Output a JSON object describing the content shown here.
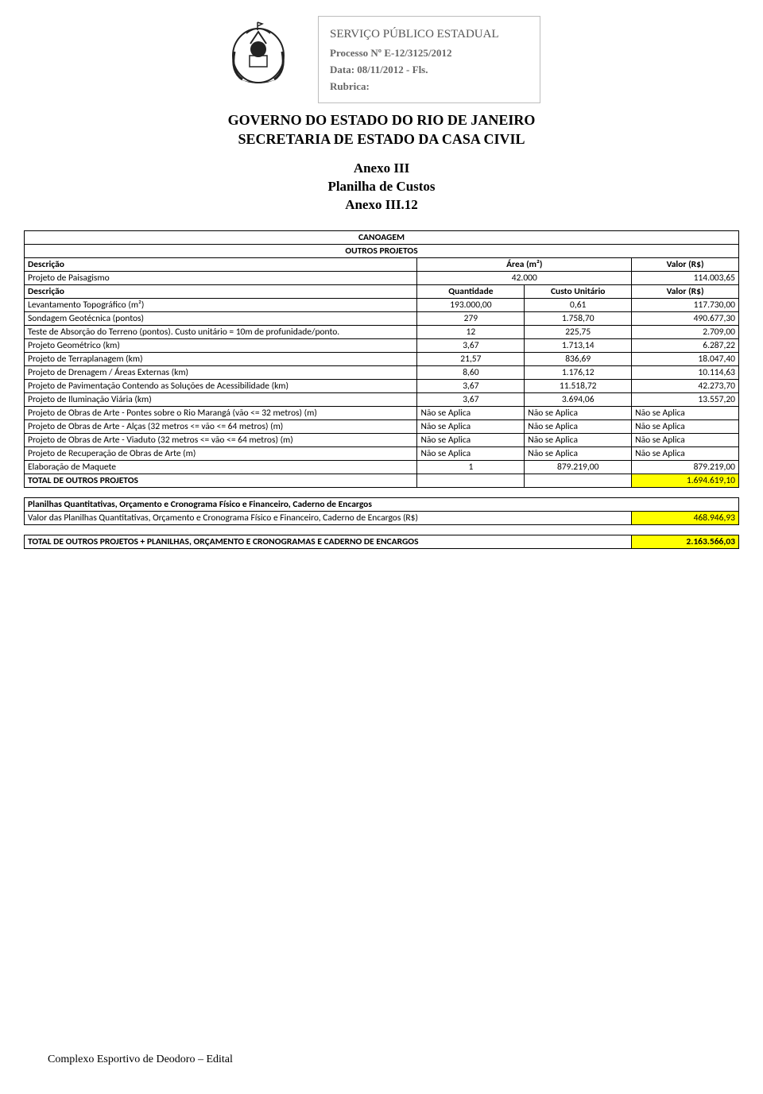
{
  "info_box": {
    "title": "SERVIÇO PÚBLICO ESTADUAL",
    "processo": "Processo Nº E-12/3125/2012",
    "data": "Data: 08/11/2012 - Fls.",
    "rubrica": "Rubrica:"
  },
  "gov_title": {
    "line1": "GOVERNO DO ESTADO DO RIO DE JANEIRO",
    "line2": "SECRETARIA DE ESTADO DA CASA CIVIL"
  },
  "annex_title": {
    "line1": "Anexo III",
    "line2": "Planilha de Custos",
    "line3": "Anexo III.12"
  },
  "table1": {
    "section1": "CANOAGEM",
    "section2": "OUTROS PROJETOS",
    "hdr1": {
      "desc": "Descrição",
      "area": "Área (m²)",
      "valor": "Valor (R$)"
    },
    "row_paisagismo": {
      "desc": "Projeto de Paisagismo",
      "area": "42.000",
      "valor": "114.003,65"
    },
    "hdr2": {
      "desc": "Descrição",
      "qtd": "Quantidade",
      "custo": "Custo Unitário",
      "valor": "Valor (R$)"
    },
    "rows": [
      {
        "desc": "Levantamento Topográfico (m²)",
        "qtd": "193.000,00",
        "custo": "0,61",
        "valor": "117.730,00"
      },
      {
        "desc": "Sondagem Geotécnica (pontos)",
        "qtd": "279",
        "custo": "1.758,70",
        "valor": "490.677,30"
      },
      {
        "desc": "Teste de Absorção do Terreno (pontos). Custo unitário = 10m de profunidade/ponto.",
        "qtd": "12",
        "custo": "225,75",
        "valor": "2.709,00"
      },
      {
        "desc": "Projeto Geométrico (km)",
        "qtd": "3,67",
        "custo": "1.713,14",
        "valor": "6.287,22"
      },
      {
        "desc": "Projeto de Terraplanagem (km)",
        "qtd": "21,57",
        "custo": "836,69",
        "valor": "18.047,40"
      },
      {
        "desc": "Projeto de Drenagem / Áreas Externas (km)",
        "qtd": "8,60",
        "custo": "1.176,12",
        "valor": "10.114,63"
      },
      {
        "desc": "Projeto de Pavimentação Contendo as Soluções de Acessibilidade (km)",
        "qtd": "3,67",
        "custo": "11.518,72",
        "valor": "42.273,70"
      },
      {
        "desc": "Projeto de Iluminação Viária (km)",
        "qtd": "3,67",
        "custo": "3.694,06",
        "valor": "13.557,20"
      },
      {
        "desc": "Projeto de Obras de Arte - Pontes sobre o Rio Marangá (vão <= 32 metros) (m)",
        "qtd": "Não se Aplica",
        "custo": "Não se Aplica",
        "valor": "Não se Aplica"
      },
      {
        "desc": "Projeto de Obras de Arte - Alças (32 metros <= vão <= 64 metros) (m)",
        "qtd": "Não se Aplica",
        "custo": "Não se Aplica",
        "valor": "Não se Aplica"
      },
      {
        "desc": "Projeto de Obras de Arte - Viaduto (32 metros <= vão <= 64 metros) (m)",
        "qtd": "Não se Aplica",
        "custo": "Não se Aplica",
        "valor": "Não se Aplica"
      },
      {
        "desc": "Projeto de Recuperação de Obras de Arte (m)",
        "qtd": "Não se Aplica",
        "custo": "Não se Aplica",
        "valor": "Não se Aplica"
      },
      {
        "desc": "Elaboração de Maquete",
        "qtd": "1",
        "custo": "879.219,00",
        "valor": "879.219,00"
      }
    ],
    "total": {
      "label": "TOTAL DE OUTROS PROJETOS",
      "valor": "1.694.619,10"
    }
  },
  "table2": {
    "header": "Planilhas Quantitativas, Orçamento e Cronograma Físico e Financeiro, Caderno de Encargos",
    "row": {
      "desc": "Valor das Planilhas Quantitativas, Orçamento e Cronograma Físico e Financeiro, Caderno de Encargos (R$)",
      "valor": "468.946,93"
    }
  },
  "table3": {
    "label": "TOTAL DE OUTROS PROJETOS + PLANILHAS, ORÇAMENTO E CRONOGRAMAS E CADERNO DE ENCARGOS",
    "valor": "2.163.566,03"
  },
  "footer": "Complexo Esportivo de Deodoro – Edital",
  "colors": {
    "highlight": "#ffff00",
    "border": "#000000",
    "info_border": "#bdbdbd",
    "info_text": "#666666"
  },
  "col_widths": {
    "desc": "55%",
    "qtd": "15%",
    "custo": "15%",
    "valor": "15%"
  }
}
